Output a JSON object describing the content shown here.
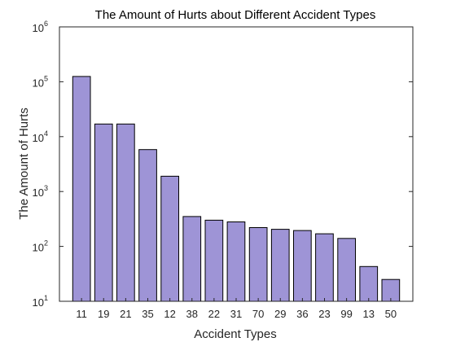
{
  "chart_data": {
    "type": "bar",
    "title": "The Amount of Hurts about Different Accident Types",
    "xlabel": "Accident Types",
    "ylabel": "The Amount of Hurts",
    "categories": [
      "11",
      "19",
      "21",
      "35",
      "12",
      "38",
      "22",
      "31",
      "70",
      "29",
      "36",
      "23",
      "99",
      "13",
      "50"
    ],
    "values": [
      125000,
      17000,
      17000,
      5800,
      1900,
      350,
      300,
      280,
      220,
      205,
      195,
      170,
      140,
      43,
      25
    ],
    "yscale": "log",
    "ylim": [
      10,
      1000000
    ],
    "yticks": [
      {
        "base": "10",
        "exp": "1",
        "value": 10
      },
      {
        "base": "10",
        "exp": "2",
        "value": 100
      },
      {
        "base": "10",
        "exp": "3",
        "value": 1000
      },
      {
        "base": "10",
        "exp": "4",
        "value": 10000
      },
      {
        "base": "10",
        "exp": "5",
        "value": 100000
      },
      {
        "base": "10",
        "exp": "6",
        "value": 1000000
      }
    ],
    "bar_color": "#9e94d6",
    "grid": false,
    "legend": "none"
  }
}
